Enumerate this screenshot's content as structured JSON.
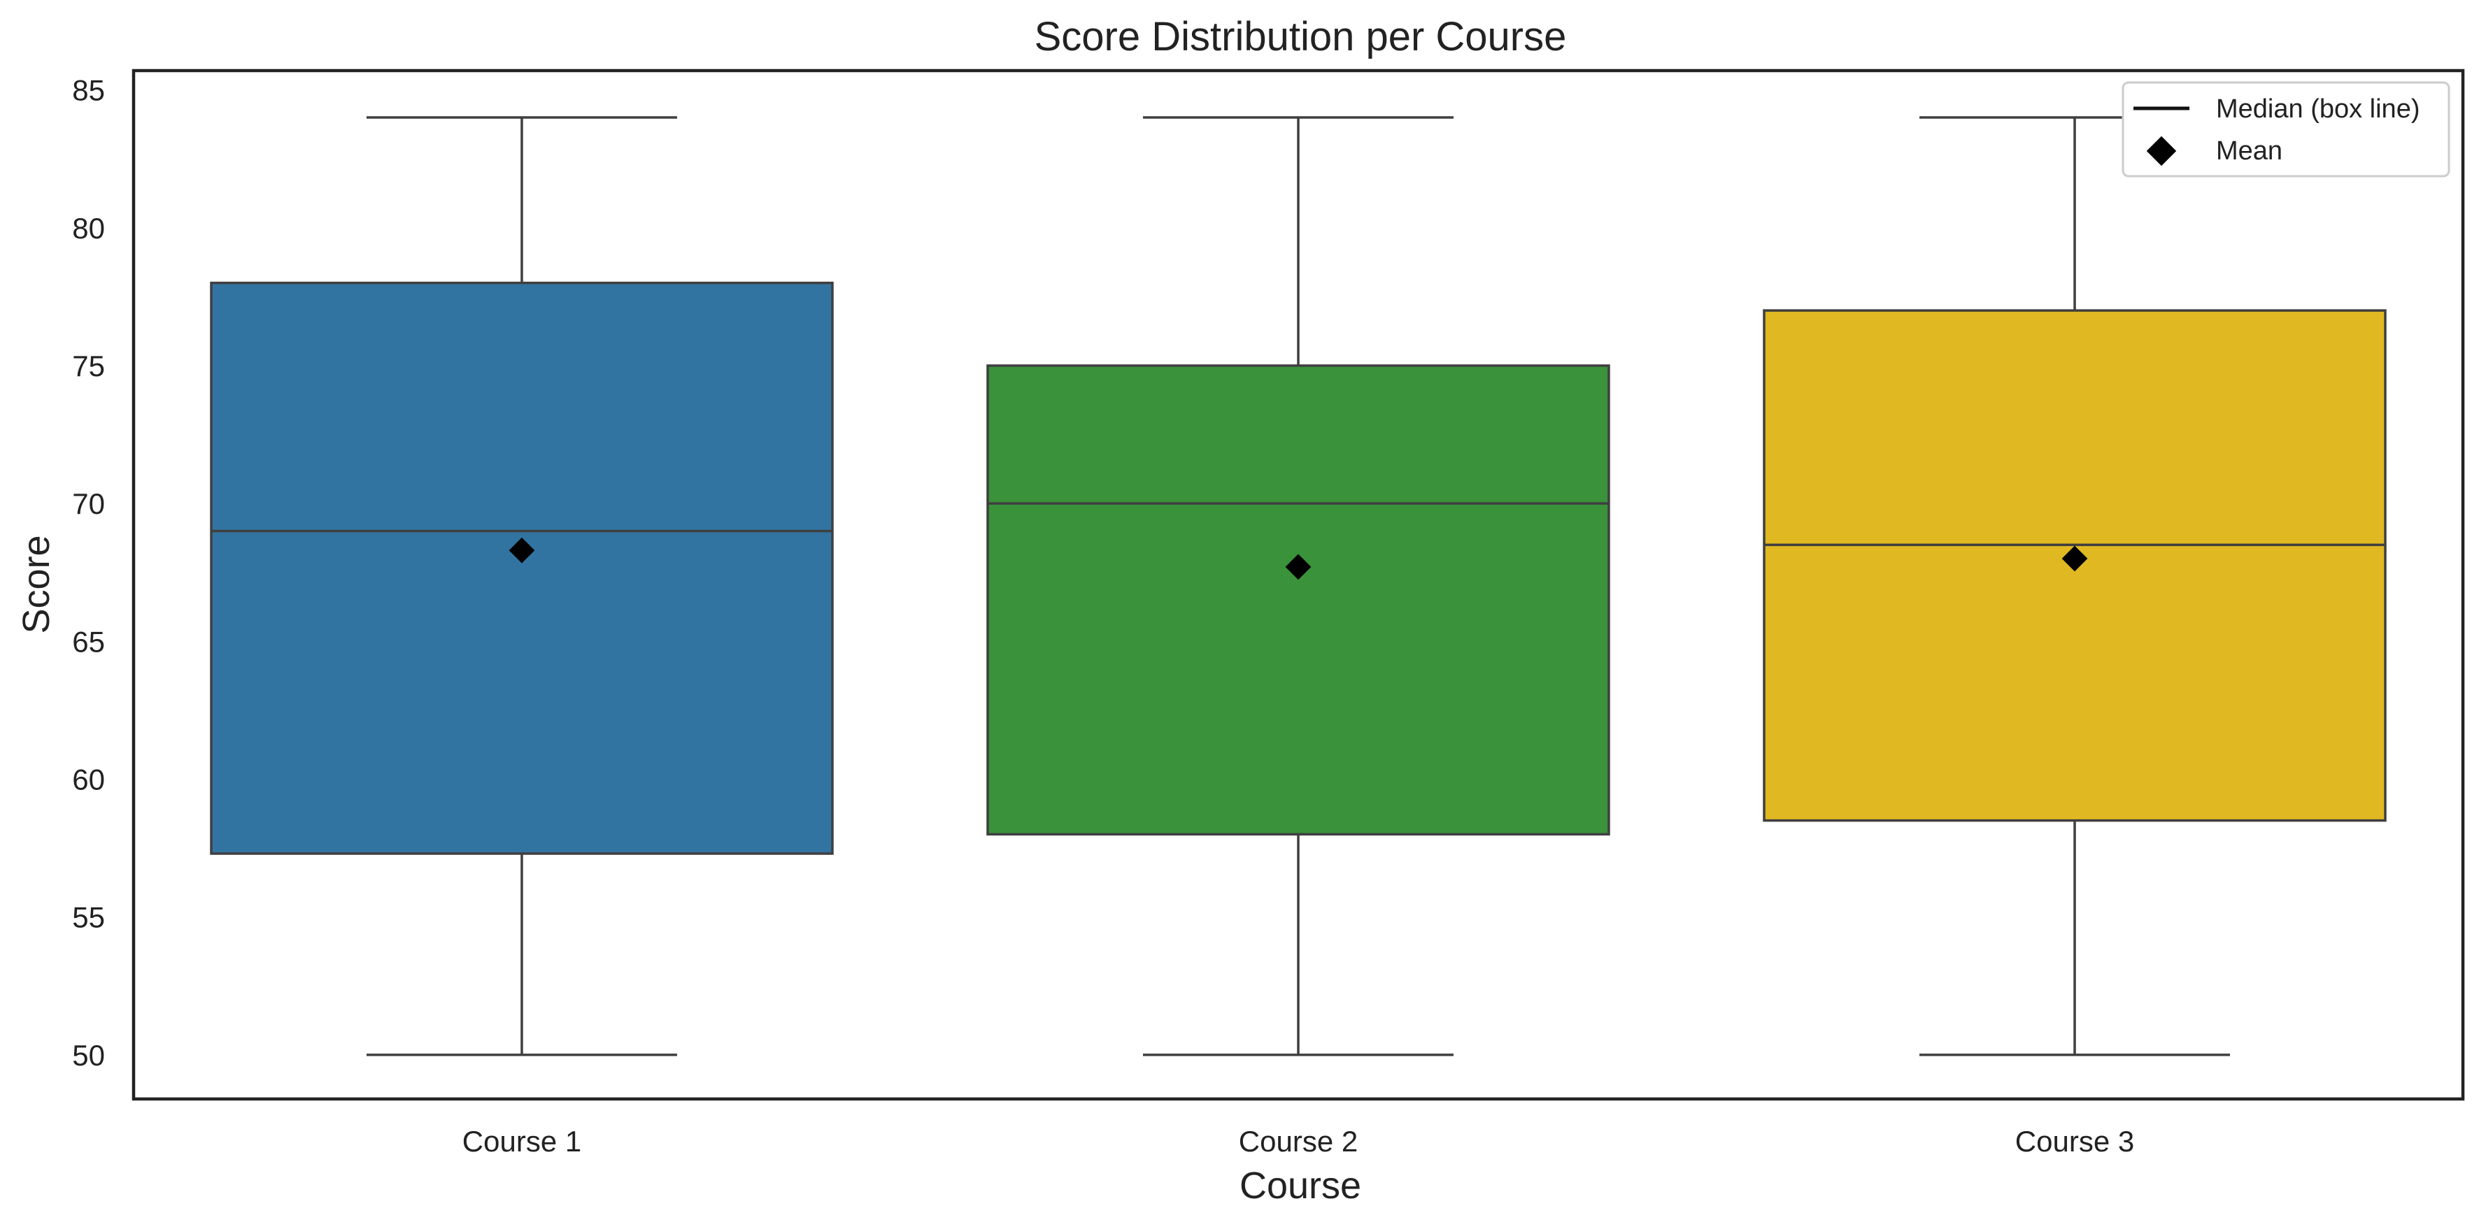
{
  "chart_data": {
    "type": "box",
    "title": "Score Distribution per Course",
    "xlabel": "Course",
    "ylabel": "Score",
    "categories": [
      "Course 1",
      "Course 2",
      "Course 3"
    ],
    "ylim": [
      48.4,
      85.7
    ],
    "yticks": [
      50,
      55,
      60,
      65,
      70,
      75,
      80,
      85
    ],
    "series": [
      {
        "category": "Course 1",
        "whisker_low": 50,
        "q1": 57.3,
        "median": 69,
        "q3": 78,
        "whisker_high": 84,
        "mean": 68.3,
        "color": "#3274a1"
      },
      {
        "category": "Course 2",
        "whisker_low": 50,
        "q1": 58,
        "median": 70,
        "q3": 75,
        "whisker_high": 84,
        "mean": 67.7,
        "color": "#3a923a"
      },
      {
        "category": "Course 3",
        "whisker_low": 50,
        "q1": 58.5,
        "median": 68.5,
        "q3": 77,
        "whisker_high": 84,
        "mean": 68,
        "color": "#e0b822"
      }
    ],
    "grid": false,
    "legend": {
      "placement": "top-right",
      "entries": [
        {
          "label": "Median (box line)",
          "marker": "line"
        },
        {
          "label": "Mean",
          "marker": "diamond"
        }
      ]
    }
  }
}
